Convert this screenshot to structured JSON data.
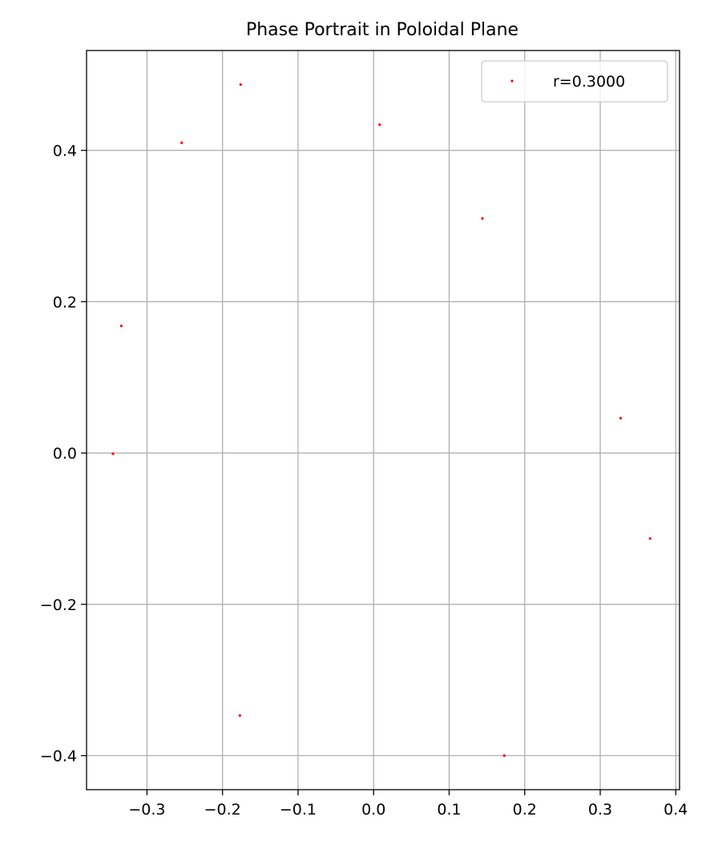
{
  "chart_data": {
    "type": "scatter",
    "title": "Phase Portrait in Poloidal Plane",
    "xlabel": "",
    "ylabel": "",
    "xlim": [
      -0.38,
      0.405
    ],
    "ylim": [
      -0.445,
      0.532
    ],
    "xticks": [
      -0.3,
      -0.2,
      -0.1,
      0.0,
      0.1,
      0.2,
      0.3,
      0.4
    ],
    "xtick_labels": [
      "−0.3",
      "−0.2",
      "−0.1",
      "0.0",
      "0.1",
      "0.2",
      "0.3",
      "0.4"
    ],
    "yticks": [
      -0.4,
      -0.2,
      0.0,
      0.2,
      0.4
    ],
    "ytick_labels": [
      "−0.4",
      "−0.2",
      "0.0",
      "0.2",
      "0.4"
    ],
    "grid": true,
    "legend_position": "top-right",
    "series": [
      {
        "name": "r=0.3000",
        "color": "#ff0000",
        "marker": "point",
        "points": [
          {
            "x": -0.176,
            "y": 0.487
          },
          {
            "x": -0.254,
            "y": 0.41
          },
          {
            "x": 0.008,
            "y": 0.434
          },
          {
            "x": 0.144,
            "y": 0.31
          },
          {
            "x": -0.334,
            "y": 0.168
          },
          {
            "x": -0.345,
            "y": -0.001
          },
          {
            "x": 0.327,
            "y": 0.046
          },
          {
            "x": 0.366,
            "y": -0.113
          },
          {
            "x": -0.177,
            "y": -0.347
          },
          {
            "x": 0.173,
            "y": -0.4
          }
        ]
      }
    ]
  }
}
